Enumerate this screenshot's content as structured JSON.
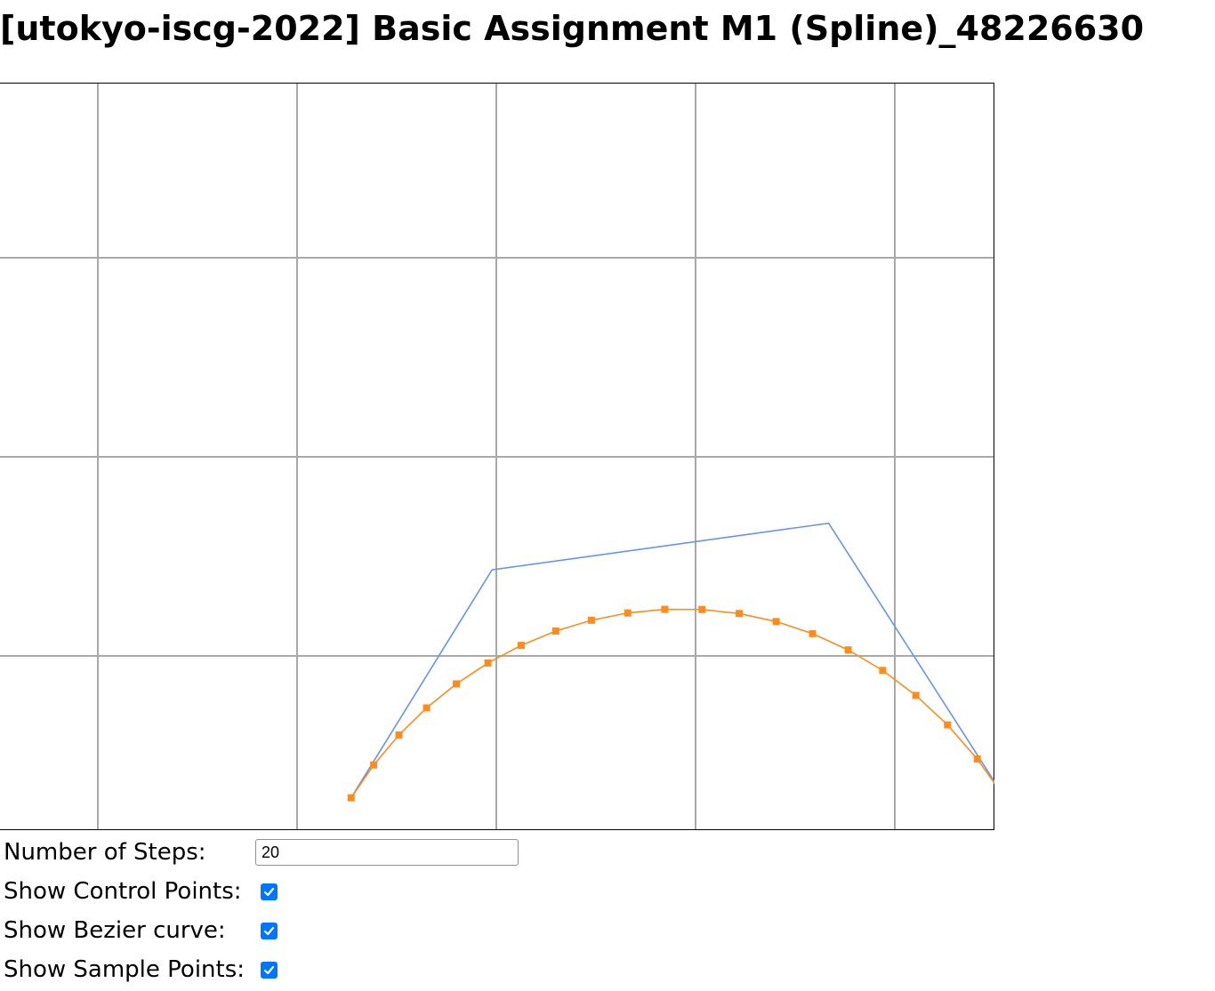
{
  "page": {
    "title": "[utokyo-iscg-2022] Basic Assignment M1 (Spline)_48226630"
  },
  "canvas": {
    "background": "#ffffff",
    "grid_color": "#a9a9a9",
    "control_polygon_color": "#6495ed",
    "curve_color": "#ff8c1a",
    "sample_point_color": "#ff8c1a",
    "control_points": [
      [
        0.289,
        0.805
      ],
      [
        0.405,
        0.575
      ],
      [
        0.682,
        0.528
      ],
      [
        0.827,
        0.805
      ]
    ]
  },
  "controls": {
    "steps": {
      "label": "Number of Steps:",
      "value": "20"
    },
    "show_control_points": {
      "label": "Show Control Points:",
      "checked": true
    },
    "show_bezier_curve": {
      "label": "Show Bezier curve:",
      "checked": true
    },
    "show_sample_points": {
      "label": "Show Sample Points:",
      "checked": true
    }
  }
}
